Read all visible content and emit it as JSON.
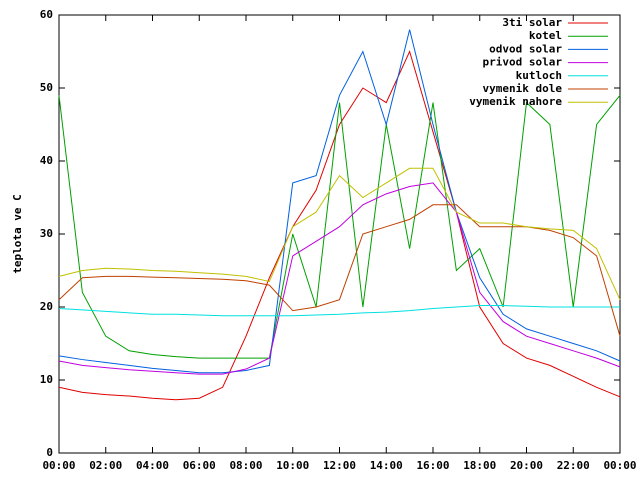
{
  "chart_data": {
    "type": "line",
    "y_label": "teplota ve C",
    "x": [
      0,
      1,
      2,
      3,
      4,
      5,
      6,
      7,
      8,
      9,
      10,
      11,
      12,
      13,
      14,
      15,
      16,
      17,
      18,
      19,
      20,
      21,
      22,
      23,
      24
    ],
    "xlim": [
      0,
      24
    ],
    "xticks": [
      {
        "value": 0,
        "label": "00:00"
      },
      {
        "value": 2,
        "label": "02:00"
      },
      {
        "value": 4,
        "label": "04:00"
      },
      {
        "value": 6,
        "label": "06:00"
      },
      {
        "value": 8,
        "label": "08:00"
      },
      {
        "value": 10,
        "label": "10:00"
      },
      {
        "value": 12,
        "label": "12:00"
      },
      {
        "value": 14,
        "label": "14:00"
      },
      {
        "value": 16,
        "label": "16:00"
      },
      {
        "value": 18,
        "label": "18:00"
      },
      {
        "value": 20,
        "label": "20:00"
      },
      {
        "value": 22,
        "label": "22:00"
      },
      {
        "value": 24,
        "label": "00:00"
      }
    ],
    "ylim": [
      0,
      60
    ],
    "yticks": [
      0,
      10,
      20,
      30,
      40,
      50,
      60
    ],
    "grid": false,
    "legend": "top-right",
    "series": [
      {
        "name": "3ti solar",
        "color": "#e00000",
        "values": [
          9,
          8.3,
          8,
          7.8,
          7.5,
          7.3,
          7.5,
          9,
          16,
          24,
          31,
          36,
          45,
          50,
          48,
          55,
          44,
          33,
          20,
          15,
          13,
          12,
          10.5,
          9,
          7.7
        ]
      },
      {
        "name": "kotel",
        "color": "#00a000",
        "values": [
          49,
          22,
          16,
          14,
          13.5,
          13.2,
          13,
          13,
          13,
          13,
          30,
          20,
          48,
          20,
          45,
          28,
          48,
          25,
          28,
          20,
          48,
          45,
          20,
          45,
          49
        ]
      },
      {
        "name": "odvod solar",
        "color": "#0060e0",
        "values": [
          13.3,
          12.8,
          12.4,
          12,
          11.6,
          11.3,
          11,
          11,
          11.3,
          12,
          37,
          38,
          49,
          55,
          45,
          58,
          45,
          33,
          24,
          19,
          17,
          16,
          15,
          14,
          12.6
        ]
      },
      {
        "name": "privod solar",
        "color": "#c000e0",
        "values": [
          12.6,
          12,
          11.7,
          11.4,
          11.2,
          11,
          10.8,
          10.8,
          11.5,
          13,
          27,
          29,
          31,
          34,
          35.5,
          36.5,
          37,
          33,
          22,
          18,
          16,
          15,
          14,
          13,
          11.8
        ]
      },
      {
        "name": "kutloch",
        "color": "#00e0e0",
        "values": [
          19.8,
          19.6,
          19.4,
          19.2,
          19,
          19,
          18.9,
          18.8,
          18.8,
          18.8,
          18.8,
          18.9,
          19,
          19.2,
          19.3,
          19.5,
          19.8,
          20,
          20.2,
          20.2,
          20.1,
          20,
          20,
          20,
          20
        ]
      },
      {
        "name": "vymenik dole",
        "color": "#c04000",
        "values": [
          21,
          24,
          24.2,
          24.2,
          24.1,
          24,
          23.9,
          23.8,
          23.6,
          23,
          19.5,
          20,
          21,
          30,
          31,
          32,
          34,
          34,
          31,
          31,
          31,
          30.5,
          29.5,
          27,
          16
        ]
      },
      {
        "name": "vymenik nahore",
        "color": "#c0c000",
        "values": [
          24.2,
          25,
          25.3,
          25.2,
          25,
          24.9,
          24.7,
          24.5,
          24.2,
          23.5,
          31,
          33,
          38,
          35,
          37,
          39,
          39,
          33,
          31.5,
          31.5,
          31,
          30.7,
          30.5,
          28,
          21
        ]
      }
    ]
  }
}
